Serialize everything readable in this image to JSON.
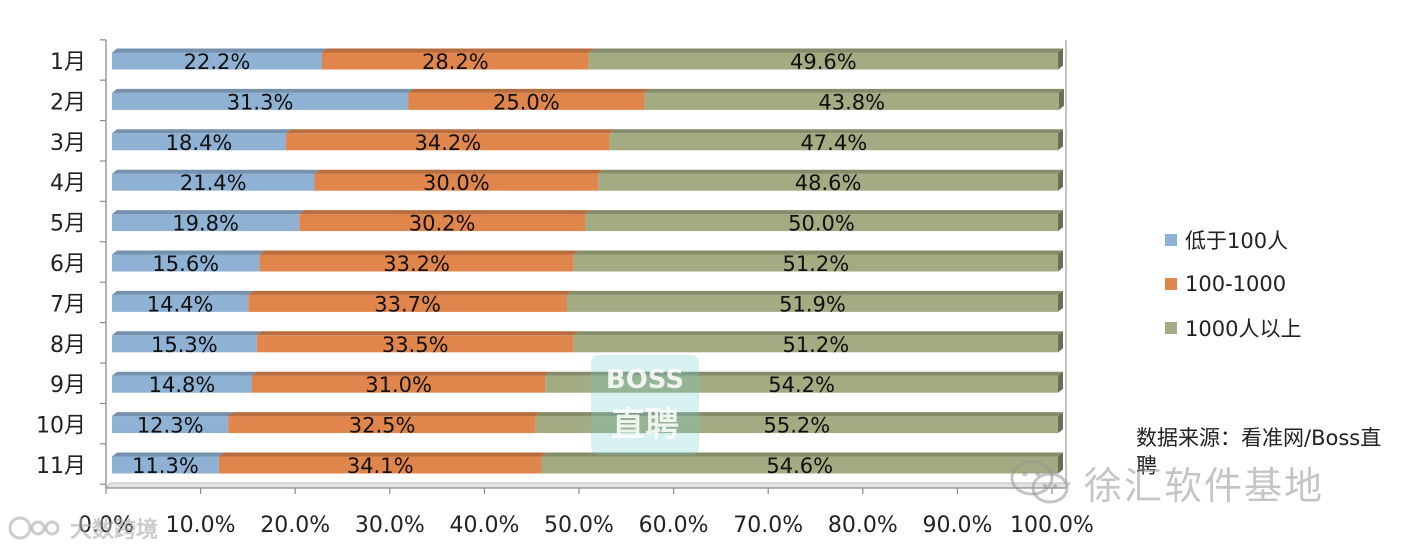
{
  "chart_data": {
    "type": "bar",
    "orientation": "horizontal",
    "stacked": "percent",
    "categories": [
      "1月",
      "2月",
      "3月",
      "4月",
      "5月",
      "6月",
      "7月",
      "8月",
      "9月",
      "10月",
      "11月"
    ],
    "series": [
      {
        "name": "低于100人",
        "color": "#8fb1d3",
        "values": [
          22.2,
          31.3,
          18.4,
          21.4,
          19.8,
          15.6,
          14.4,
          15.3,
          14.8,
          12.3,
          11.3
        ]
      },
      {
        "name": "100-1000",
        "color": "#e0854c",
        "values": [
          28.2,
          25.0,
          34.2,
          30.0,
          30.2,
          33.2,
          33.7,
          33.5,
          31.0,
          32.5,
          34.1
        ]
      },
      {
        "name": "1000人以上",
        "color": "#a2ab82",
        "values": [
          49.6,
          43.8,
          47.4,
          48.6,
          50.0,
          51.2,
          51.9,
          51.2,
          54.2,
          55.2,
          54.6
        ]
      }
    ],
    "x_ticks": [
      "0.0%",
      "10.0%",
      "20.0%",
      "30.0%",
      "40.0%",
      "50.0%",
      "60.0%",
      "70.0%",
      "80.0%",
      "90.0%",
      "100.0%"
    ],
    "xlim": [
      0,
      100
    ],
    "legend_position": "right",
    "grid": false
  },
  "source_note": "数据来源：看准网/Boss直聘",
  "watermarks": {
    "right_text": "徐汇软件基地",
    "left_text": "大数跨境",
    "boss_line1": "BOSS",
    "boss_line2": "直聘"
  }
}
